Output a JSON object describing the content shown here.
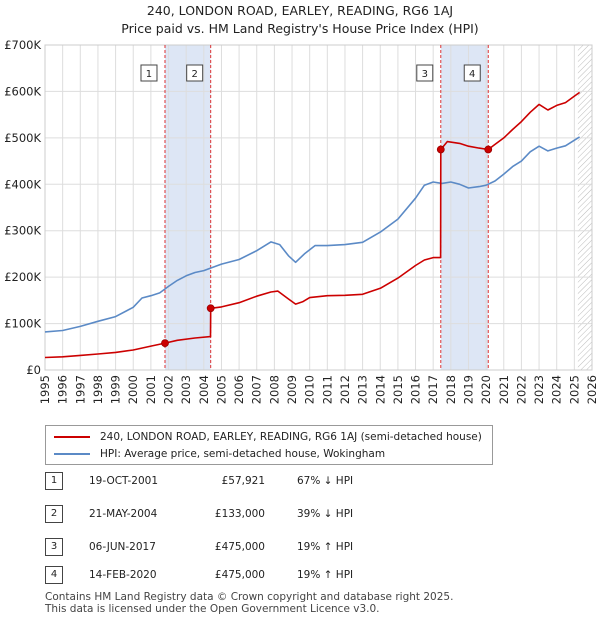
{
  "title_line1": "240, LONDON ROAD, EARLEY, READING, RG6 1AJ",
  "title_line2": "Price paid vs. HM Land Registry's House Price Index (HPI)",
  "colors": {
    "property": "#cc0000",
    "hpi": "#5b8ac6",
    "shade": "#dde6f5",
    "grid": "#dddddd",
    "vline": "#dd3333"
  },
  "chart_data": {
    "type": "line",
    "title": "Price paid vs. HM Land Registry's House Price Index (HPI)",
    "xlim": [
      1995,
      2026
    ],
    "ylim": [
      0,
      700000
    ],
    "x_ticks": [
      1995,
      1996,
      1997,
      1998,
      1999,
      2000,
      2001,
      2002,
      2003,
      2004,
      2005,
      2006,
      2007,
      2008,
      2009,
      2010,
      2011,
      2012,
      2013,
      2014,
      2015,
      2016,
      2017,
      2018,
      2019,
      2020,
      2021,
      2022,
      2023,
      2024,
      2025,
      2026
    ],
    "y_ticks": [
      {
        "value": 0,
        "label": "£0"
      },
      {
        "value": 100000,
        "label": "£100K"
      },
      {
        "value": 200000,
        "label": "£200K"
      },
      {
        "value": 300000,
        "label": "£300K"
      },
      {
        "value": 400000,
        "label": "£400K"
      },
      {
        "value": 500000,
        "label": "£500K"
      },
      {
        "value": 600000,
        "label": "£600K"
      },
      {
        "value": 700000,
        "label": "£700K"
      }
    ],
    "shaded_periods": [
      [
        2001.8,
        2004.39
      ],
      [
        2017.43,
        2020.12
      ]
    ],
    "hatched_from": 2025.2,
    "series": [
      {
        "name": "240, LONDON ROAD, EARLEY, READING, RG6 1AJ (semi-detached house)",
        "color": "#cc0000",
        "points": [
          [
            1995.0,
            27000
          ],
          [
            1996.0,
            28500
          ],
          [
            1997.0,
            31500
          ],
          [
            1998.0,
            34500
          ],
          [
            1999.0,
            38000
          ],
          [
            2000.0,
            43000
          ],
          [
            2001.0,
            51500
          ],
          [
            2001.8,
            57921
          ],
          [
            2002.5,
            64000
          ],
          [
            2003.5,
            69000
          ],
          [
            2004.38,
            72000
          ],
          [
            2004.39,
            133000
          ],
          [
            2005.0,
            136000
          ],
          [
            2006.0,
            145000
          ],
          [
            2007.0,
            159000
          ],
          [
            2007.8,
            168000
          ],
          [
            2008.2,
            170000
          ],
          [
            2008.8,
            153000
          ],
          [
            2009.2,
            142000
          ],
          [
            2009.6,
            147000
          ],
          [
            2010.0,
            156000
          ],
          [
            2011.0,
            160000
          ],
          [
            2012.0,
            161000
          ],
          [
            2013.0,
            163000
          ],
          [
            2014.0,
            176000
          ],
          [
            2015.0,
            198000
          ],
          [
            2016.0,
            225000
          ],
          [
            2016.5,
            237000
          ],
          [
            2017.0,
            242000
          ],
          [
            2017.42,
            242000
          ],
          [
            2017.43,
            475000
          ],
          [
            2017.8,
            492000
          ],
          [
            2018.5,
            488000
          ],
          [
            2019.0,
            482000
          ],
          [
            2019.6,
            478000
          ],
          [
            2020.12,
            475000
          ],
          [
            2020.5,
            486000
          ],
          [
            2021.0,
            500000
          ],
          [
            2021.5,
            518000
          ],
          [
            2022.0,
            535000
          ],
          [
            2022.5,
            555000
          ],
          [
            2023.0,
            572000
          ],
          [
            2023.5,
            560000
          ],
          [
            2024.0,
            570000
          ],
          [
            2024.5,
            576000
          ],
          [
            2025.0,
            590000
          ],
          [
            2025.3,
            598000
          ]
        ]
      },
      {
        "name": "HPI: Average price, semi-detached house, Wokingham",
        "color": "#5b8ac6",
        "points": [
          [
            1995.0,
            82000
          ],
          [
            1996.0,
            85000
          ],
          [
            1997.0,
            94000
          ],
          [
            1998.0,
            105000
          ],
          [
            1999.0,
            115000
          ],
          [
            2000.0,
            135000
          ],
          [
            2000.5,
            155000
          ],
          [
            2001.0,
            160000
          ],
          [
            2001.5,
            166000
          ],
          [
            2002.0,
            180000
          ],
          [
            2002.5,
            193000
          ],
          [
            2003.0,
            203000
          ],
          [
            2003.5,
            210000
          ],
          [
            2004.0,
            214000
          ],
          [
            2004.5,
            221000
          ],
          [
            2005.0,
            228000
          ],
          [
            2006.0,
            238000
          ],
          [
            2007.0,
            257000
          ],
          [
            2007.8,
            276000
          ],
          [
            2008.3,
            270000
          ],
          [
            2008.8,
            246000
          ],
          [
            2009.2,
            232000
          ],
          [
            2009.7,
            250000
          ],
          [
            2010.3,
            268000
          ],
          [
            2011.0,
            268000
          ],
          [
            2012.0,
            270000
          ],
          [
            2013.0,
            275000
          ],
          [
            2014.0,
            297000
          ],
          [
            2015.0,
            325000
          ],
          [
            2016.0,
            370000
          ],
          [
            2016.5,
            398000
          ],
          [
            2017.0,
            405000
          ],
          [
            2017.5,
            402000
          ],
          [
            2018.0,
            405000
          ],
          [
            2018.5,
            400000
          ],
          [
            2019.0,
            392000
          ],
          [
            2019.6,
            395000
          ],
          [
            2020.0,
            398000
          ],
          [
            2020.5,
            407000
          ],
          [
            2021.0,
            422000
          ],
          [
            2021.5,
            438000
          ],
          [
            2022.0,
            450000
          ],
          [
            2022.5,
            470000
          ],
          [
            2023.0,
            482000
          ],
          [
            2023.5,
            472000
          ],
          [
            2024.0,
            478000
          ],
          [
            2024.5,
            483000
          ],
          [
            2025.0,
            495000
          ],
          [
            2025.3,
            502000
          ]
        ]
      }
    ],
    "sales": [
      {
        "id": "1",
        "x": 2001.8,
        "price": 57921
      },
      {
        "id": "2",
        "x": 2004.39,
        "price": 133000
      },
      {
        "id": "3",
        "x": 2017.43,
        "price": 475000
      },
      {
        "id": "4",
        "x": 2020.12,
        "price": 475000
      }
    ]
  },
  "legend": {
    "property_label": "240, LONDON ROAD, EARLEY, READING, RG6 1AJ (semi-detached house)",
    "hpi_label": "HPI: Average price, semi-detached house, Wokingham"
  },
  "sales_table": [
    {
      "num": "1",
      "date": "19-OCT-2001",
      "price": "£57,921",
      "hpi": "67% ↓ HPI"
    },
    {
      "num": "2",
      "date": "21-MAY-2004",
      "price": "£133,000",
      "hpi": "39% ↓ HPI"
    },
    {
      "num": "3",
      "date": "06-JUN-2017",
      "price": "£475,000",
      "hpi": "19% ↑ HPI"
    },
    {
      "num": "4",
      "date": "14-FEB-2020",
      "price": "£475,000",
      "hpi": "19% ↑ HPI"
    }
  ],
  "footer": {
    "line1": "Contains HM Land Registry data © Crown copyright and database right 2025.",
    "line2": "This data is licensed under the Open Government Licence v3.0."
  }
}
